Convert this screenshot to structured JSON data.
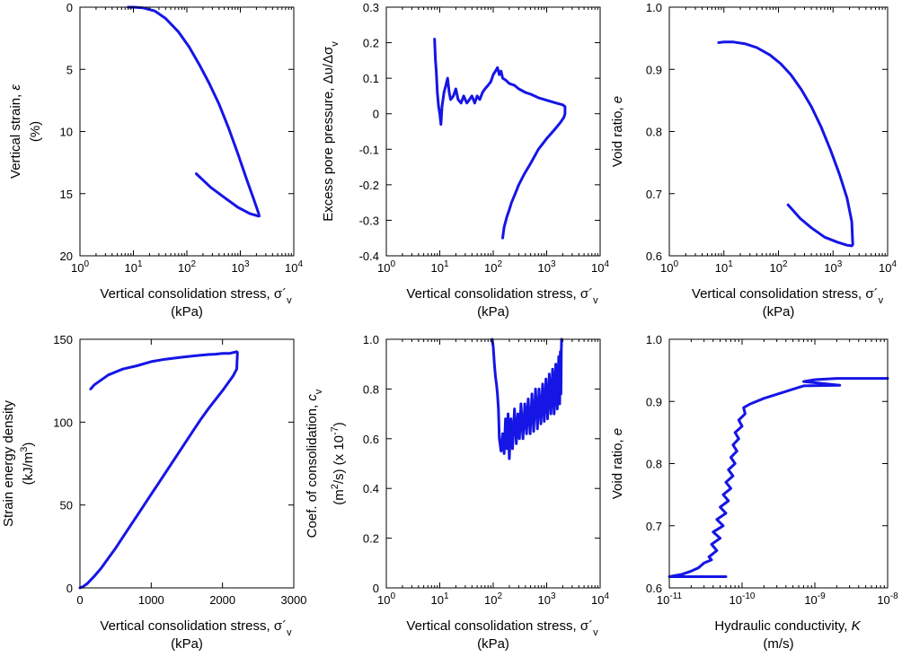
{
  "series_color": "#1515e6",
  "chart_data": [
    {
      "type": "line",
      "xscale": "log",
      "xlim": [
        1,
        10000
      ],
      "xticks": [
        1,
        10,
        100,
        1000,
        10000
      ],
      "xticklabels": [
        [
          "10",
          "0"
        ],
        [
          "10",
          "1"
        ],
        [
          "10",
          "2"
        ],
        [
          "10",
          "3"
        ],
        [
          "10",
          "4"
        ]
      ],
      "yinverted": true,
      "ylim": [
        0,
        20
      ],
      "yticks": [
        0,
        5,
        10,
        15,
        20
      ],
      "yticklabels": [
        "0",
        "5",
        "10",
        "15",
        "20"
      ],
      "xlabel_lines": [
        "Vertical consolidation stress, σ´v",
        "(kPa)"
      ],
      "ylabel_lines": [
        "Vertical strain, ε",
        "(%)"
      ],
      "series": [
        {
          "x": [
            8,
            10,
            15,
            25,
            40,
            70,
            110,
            170,
            260,
            400,
            600,
            900,
            1300,
            1800,
            2200,
            2250,
            2150,
            1500,
            900,
            500,
            280,
            150
          ],
          "y": [
            0,
            0,
            0.05,
            0.3,
            0.9,
            2,
            3.2,
            4.6,
            6.1,
            7.8,
            9.7,
            11.8,
            13.8,
            15.5,
            16.6,
            16.8,
            16.8,
            16.6,
            16.1,
            15.3,
            14.5,
            13.4
          ]
        }
      ]
    },
    {
      "type": "line",
      "xscale": "log",
      "xlim": [
        1,
        10000
      ],
      "xticks": [
        1,
        10,
        100,
        1000,
        10000
      ],
      "xticklabels": [
        [
          "10",
          "0"
        ],
        [
          "10",
          "1"
        ],
        [
          "10",
          "2"
        ],
        [
          "10",
          "3"
        ],
        [
          "10",
          "4"
        ]
      ],
      "ylim": [
        -0.4,
        0.3
      ],
      "yticks": [
        -0.4,
        -0.3,
        -0.2,
        -0.1,
        0,
        0.1,
        0.2,
        0.3
      ],
      "yticklabels": [
        "-0.4",
        "-0.3",
        "-0.2",
        "-0.1",
        "0",
        "0.1",
        "0.2",
        "0.3"
      ],
      "xlabel_lines": [
        "Vertical consolidation stress, σ´v",
        "(kPa)"
      ],
      "ylabel_lines": [
        "Excess pore pressure, Δυ/Δσv"
      ],
      "series": [
        {
          "x": [
            8,
            8.3,
            8.6,
            9,
            9.5,
            10,
            10.5,
            11,
            12,
            13,
            14,
            15,
            16,
            18,
            20,
            22,
            25,
            28,
            32,
            36,
            40,
            45,
            50,
            56,
            63,
            70,
            80,
            90,
            100,
            110,
            120,
            130,
            140,
            150,
            170,
            200,
            250,
            300,
            400,
            500,
            700,
            1000,
            1500,
            2000,
            2200,
            2200,
            2100,
            1800,
            1400,
            1000,
            700,
            500,
            380,
            300,
            250,
            220,
            200,
            180,
            160,
            150
          ],
          "y": [
            0.21,
            0.15,
            0.12,
            0.06,
            0.02,
            0.0,
            -0.03,
            0.02,
            0.06,
            0.08,
            0.1,
            0.06,
            0.04,
            0.05,
            0.07,
            0.04,
            0.03,
            0.05,
            0.03,
            0.04,
            0.05,
            0.03,
            0.05,
            0.04,
            0.06,
            0.07,
            0.08,
            0.09,
            0.11,
            0.12,
            0.13,
            0.11,
            0.12,
            0.1,
            0.095,
            0.085,
            0.08,
            0.07,
            0.06,
            0.055,
            0.045,
            0.038,
            0.03,
            0.025,
            0.02,
            0.0,
            -0.01,
            -0.025,
            -0.045,
            -0.07,
            -0.1,
            -0.14,
            -0.17,
            -0.2,
            -0.23,
            -0.25,
            -0.27,
            -0.29,
            -0.32,
            -0.35
          ]
        }
      ]
    },
    {
      "type": "line",
      "xscale": "log",
      "xlim": [
        1,
        10000
      ],
      "xticks": [
        1,
        10,
        100,
        1000,
        10000
      ],
      "xticklabels": [
        [
          "10",
          "0"
        ],
        [
          "10",
          "1"
        ],
        [
          "10",
          "2"
        ],
        [
          "10",
          "3"
        ],
        [
          "10",
          "4"
        ]
      ],
      "ylim": [
        0.6,
        1.0
      ],
      "yticks": [
        0.6,
        0.7,
        0.8,
        0.9,
        1.0
      ],
      "yticklabels": [
        "0.6",
        "0.7",
        "0.8",
        "0.9",
        "1.0"
      ],
      "xlabel_lines": [
        "Vertical consolidation stress, σ´v",
        "(kPa)"
      ],
      "ylabel_lines": [
        "Void ratio, e"
      ],
      "series": [
        {
          "x": [
            8,
            10,
            15,
            25,
            40,
            70,
            110,
            170,
            260,
            400,
            600,
            900,
            1300,
            1800,
            2200,
            2300,
            2200,
            1800,
            1200,
            700,
            400,
            250,
            150
          ],
          "y": [
            0.943,
            0.944,
            0.944,
            0.941,
            0.935,
            0.923,
            0.909,
            0.891,
            0.868,
            0.84,
            0.808,
            0.77,
            0.732,
            0.693,
            0.655,
            0.618,
            0.616,
            0.617,
            0.622,
            0.63,
            0.645,
            0.66,
            0.682
          ]
        }
      ]
    },
    {
      "type": "line",
      "xscale": "linear",
      "xlim": [
        0,
        3000
      ],
      "xticks": [
        0,
        1000,
        2000,
        3000
      ],
      "xticklabels": [
        [
          "0",
          ""
        ],
        [
          "1000",
          ""
        ],
        [
          "2000",
          ""
        ],
        [
          "3000",
          ""
        ]
      ],
      "ylim": [
        0,
        150
      ],
      "yticks": [
        0,
        50,
        100,
        150
      ],
      "yticklabels": [
        "0",
        "50",
        "100",
        "150"
      ],
      "xlabel_lines": [
        "Vertical consolidation stress, σ´v",
        "(kPa)"
      ],
      "ylabel_lines": [
        "Strain energy density",
        "(kJ/m3)"
      ],
      "series": [
        {
          "x": [
            0,
            50,
            100,
            200,
            300,
            400,
            500,
            600,
            700,
            800,
            900,
            1000,
            1100,
            1200,
            1300,
            1400,
            1500,
            1600,
            1700,
            1800,
            1900,
            2000,
            2100,
            2150,
            2200,
            2210,
            2200,
            2100,
            2000,
            1900,
            1800,
            1600,
            1400,
            1200,
            1000,
            800,
            600,
            400,
            200,
            150
          ],
          "y": [
            0,
            1,
            2.5,
            7,
            12,
            18,
            24,
            30.5,
            37,
            43.5,
            50,
            56.5,
            63,
            69.5,
            76,
            82.5,
            89,
            95.5,
            102,
            108,
            113.5,
            119,
            125,
            128,
            132,
            142,
            142.5,
            141.5,
            141.5,
            141,
            140.8,
            140,
            139,
            138,
            136.5,
            134,
            132,
            128.5,
            122.5,
            120
          ]
        }
      ]
    },
    {
      "type": "line",
      "xscale": "log",
      "xlim": [
        1,
        10000
      ],
      "xticks": [
        1,
        10,
        100,
        1000,
        10000
      ],
      "xticklabels": [
        [
          "10",
          "0"
        ],
        [
          "10",
          "1"
        ],
        [
          "10",
          "2"
        ],
        [
          "10",
          "3"
        ],
        [
          "10",
          "4"
        ]
      ],
      "ylim": [
        0,
        1.0
      ],
      "yticks": [
        0,
        0.2,
        0.4,
        0.6,
        0.8,
        1.0
      ],
      "yticklabels": [
        "0",
        "0.2",
        "0.4",
        "0.6",
        "0.8",
        "1.0"
      ],
      "xlabel_lines": [
        "Vertical consolidation stress, σ´v",
        "(kPa)"
      ],
      "ylabel_lines": [
        "Coef. of consolidation, cv",
        "(m2/s) (x 10-7)"
      ],
      "series": [
        {
          "x": [
            95,
            100,
            105,
            110,
            115,
            120,
            125,
            130,
            140,
            150,
            160,
            170,
            180,
            190,
            200,
            215,
            230,
            250,
            270,
            290,
            310,
            330,
            360,
            390,
            420,
            450,
            490,
            530,
            570,
            620,
            670,
            720,
            780,
            840,
            900,
            970,
            1040,
            1120,
            1200,
            1290,
            1380,
            1480,
            1580,
            1680,
            1750,
            1800,
            1850,
            1880,
            1900
          ],
          "y": [
            1.0,
            0.97,
            0.9,
            0.85,
            0.82,
            0.78,
            0.72,
            0.6,
            0.55,
            0.62,
            0.54,
            0.68,
            0.56,
            0.7,
            0.52,
            0.68,
            0.56,
            0.72,
            0.58,
            0.7,
            0.6,
            0.74,
            0.6,
            0.74,
            0.62,
            0.76,
            0.62,
            0.78,
            0.63,
            0.8,
            0.64,
            0.8,
            0.66,
            0.82,
            0.67,
            0.84,
            0.68,
            0.86,
            0.7,
            0.88,
            0.7,
            0.9,
            0.72,
            0.93,
            0.74,
            0.95,
            0.78,
            0.96,
            1.0
          ]
        }
      ]
    },
    {
      "type": "line",
      "xscale": "log",
      "xlim": [
        1e-11,
        1e-08
      ],
      "xticks": [
        1e-11,
        1e-10,
        1e-09,
        1e-08
      ],
      "xticklabels": [
        [
          "10",
          "-11"
        ],
        [
          "10",
          "-10"
        ],
        [
          "10",
          "-9"
        ],
        [
          "10",
          "-8"
        ]
      ],
      "ylim": [
        0.6,
        1.0
      ],
      "yticks": [
        0.6,
        0.7,
        0.8,
        0.9,
        1.0
      ],
      "yticklabels": [
        "0.6",
        "0.7",
        "0.8",
        "0.9",
        "1.0"
      ],
      "xlabel_lines": [
        "Hydraulic conductivity, K",
        "(m/s)"
      ],
      "ylabel_lines": [
        "Void ratio, e"
      ],
      "series": [
        {
          "x": [
            1e-08,
            2e-09,
            1e-09,
            7e-10,
            2.2e-09,
            7e-10,
            2e-10,
            1.3e-10,
            1.05e-10,
            1.1e-10,
            9e-11,
            1e-10,
            8e-11,
            9e-11,
            7.5e-11,
            8.5e-11,
            7e-11,
            8e-11,
            6.5e-11,
            7.5e-11,
            6e-11,
            7e-11,
            5.5e-11,
            6.5e-11,
            5e-11,
            6e-11,
            4.5e-11,
            5.5e-11,
            4e-11,
            5e-11,
            3.8e-11,
            4.5e-11,
            3.5e-11,
            3.8e-11,
            3e-11,
            2.5e-11,
            2e-11,
            1.5e-11,
            1e-11,
            6e-11
          ],
          "y": [
            0.937,
            0.937,
            0.935,
            0.932,
            0.926,
            0.925,
            0.905,
            0.896,
            0.89,
            0.88,
            0.87,
            0.86,
            0.85,
            0.84,
            0.83,
            0.82,
            0.81,
            0.8,
            0.79,
            0.78,
            0.77,
            0.76,
            0.75,
            0.74,
            0.73,
            0.72,
            0.71,
            0.7,
            0.69,
            0.68,
            0.67,
            0.66,
            0.65,
            0.645,
            0.64,
            0.632,
            0.627,
            0.622,
            0.618,
            0.618
          ]
        }
      ]
    }
  ]
}
